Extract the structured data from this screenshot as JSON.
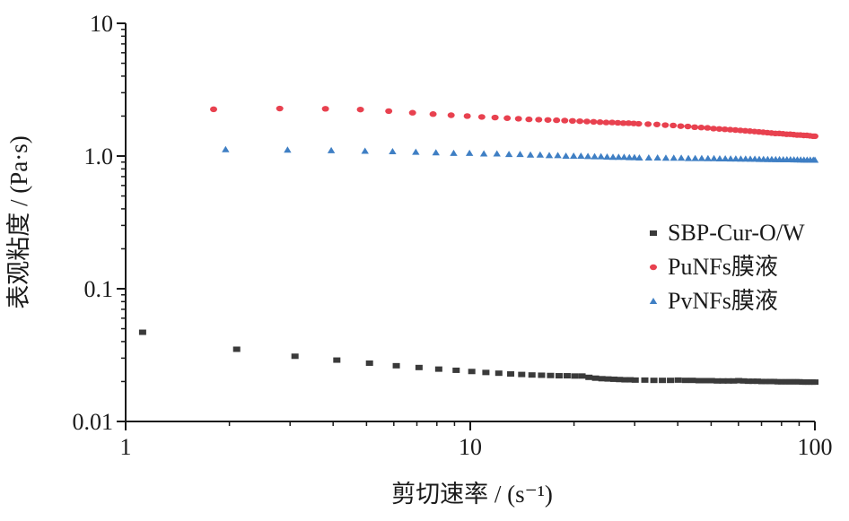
{
  "chart_data": {
    "type": "scatter",
    "xlabel": "剪切速率 / (s⁻¹)",
    "ylabel": "表观粘度 / (Pa·s)",
    "xscale": "log",
    "yscale": "log",
    "xlim": [
      1,
      100
    ],
    "ylim": [
      0.01,
      10
    ],
    "x_ticks": [
      1,
      10,
      100
    ],
    "x_tick_labels": [
      "1",
      "10",
      "100"
    ],
    "y_ticks": [
      0.01,
      0.1,
      1,
      10
    ],
    "y_tick_labels": [
      "0.01",
      "0.1",
      "1.0",
      "10"
    ],
    "grid": false,
    "legend_position": "right",
    "series": [
      {
        "name": "SBP-Cur-O/W",
        "marker": "square",
        "color": "#3a3a3a",
        "x": [
          1.12,
          2.1,
          3.1,
          4.1,
          5.1,
          6.1,
          7.1,
          8.1,
          9.1,
          10.1,
          11.1,
          12.1,
          13.1,
          14.1,
          15.1,
          16.1,
          17.1,
          18.1,
          19.1,
          20.1,
          21.1,
          22.1,
          23.1,
          24.1,
          25.1,
          26.1,
          27.1,
          28.1,
          29.1,
          30.1,
          32.1,
          34.1,
          36.1,
          38.1,
          40.1,
          42.1,
          44.1,
          46.1,
          48.1,
          50.1,
          52.1,
          54.1,
          56.1,
          58.1,
          60.1,
          62.1,
          64.1,
          66.1,
          68.1,
          70.1,
          72.1,
          74.1,
          76.1,
          78.1,
          80.1,
          82.1,
          84.1,
          86.1,
          88.1,
          90.1,
          92.1,
          94.1,
          96.1,
          98.1,
          100
        ],
        "y": [
          0.047,
          0.035,
          0.031,
          0.029,
          0.0275,
          0.0263,
          0.0255,
          0.0248,
          0.0243,
          0.0238,
          0.0234,
          0.0231,
          0.0228,
          0.0226,
          0.0224,
          0.0223,
          0.0222,
          0.0221,
          0.0221,
          0.022,
          0.022,
          0.0215,
          0.0212,
          0.021,
          0.0209,
          0.0208,
          0.0207,
          0.0206,
          0.0206,
          0.0205,
          0.0205,
          0.0204,
          0.0204,
          0.0204,
          0.0205,
          0.0204,
          0.0204,
          0.0203,
          0.0203,
          0.0203,
          0.0202,
          0.0202,
          0.0202,
          0.0202,
          0.0203,
          0.0202,
          0.0201,
          0.0201,
          0.0201,
          0.02,
          0.02,
          0.02,
          0.02,
          0.0199,
          0.0199,
          0.0199,
          0.0199,
          0.0199,
          0.0199,
          0.0199,
          0.0198,
          0.0198,
          0.0198,
          0.0198,
          0.0198
        ]
      },
      {
        "name": "PuNFs膜液",
        "marker": "circle",
        "color": "#e8414f",
        "x": [
          1.8,
          2.8,
          3.8,
          4.8,
          5.8,
          6.8,
          7.8,
          8.8,
          9.8,
          10.8,
          11.8,
          12.8,
          13.8,
          14.8,
          15.8,
          16.8,
          17.8,
          18.8,
          19.8,
          20.8,
          21.8,
          22.8,
          23.8,
          24.8,
          25.8,
          26.8,
          27.8,
          28.8,
          29.8,
          30.8,
          32.8,
          34.8,
          36.8,
          38.8,
          40.8,
          42.8,
          44.8,
          46.8,
          48.8,
          50.8,
          52.8,
          54.8,
          56.8,
          58.8,
          60.8,
          62.8,
          64.8,
          66.8,
          68.8,
          70.8,
          72.8,
          74.8,
          76.8,
          78.8,
          80.8,
          82.8,
          84.8,
          86.8,
          88.8,
          90.8,
          92.8,
          94.8,
          96.8,
          98.8,
          100
        ],
        "y": [
          2.25,
          2.28,
          2.27,
          2.24,
          2.18,
          2.12,
          2.07,
          2.03,
          2.0,
          1.97,
          1.95,
          1.93,
          1.91,
          1.89,
          1.88,
          1.87,
          1.86,
          1.85,
          1.84,
          1.83,
          1.82,
          1.81,
          1.8,
          1.79,
          1.79,
          1.78,
          1.77,
          1.77,
          1.76,
          1.75,
          1.74,
          1.73,
          1.71,
          1.7,
          1.68,
          1.67,
          1.65,
          1.64,
          1.63,
          1.61,
          1.6,
          1.59,
          1.58,
          1.57,
          1.56,
          1.55,
          1.54,
          1.53,
          1.52,
          1.51,
          1.5,
          1.49,
          1.48,
          1.48,
          1.47,
          1.46,
          1.46,
          1.45,
          1.44,
          1.44,
          1.43,
          1.43,
          1.42,
          1.41,
          1.41
        ]
      },
      {
        "name": "PvNFs膜液",
        "marker": "triangle",
        "color": "#3f7fc4",
        "x": [
          1.95,
          2.95,
          3.95,
          4.95,
          5.95,
          6.95,
          7.95,
          8.95,
          9.95,
          10.95,
          11.95,
          12.95,
          13.95,
          14.95,
          15.95,
          16.95,
          17.95,
          18.95,
          19.95,
          20.95,
          21.95,
          22.95,
          23.95,
          24.95,
          25.95,
          26.95,
          27.95,
          28.95,
          29.95,
          30.95,
          32.95,
          34.95,
          36.95,
          38.95,
          40.95,
          42.95,
          44.95,
          46.95,
          48.95,
          50.95,
          52.95,
          54.95,
          56.95,
          58.95,
          60.95,
          62.95,
          64.95,
          66.95,
          68.95,
          70.95,
          72.95,
          74.95,
          76.95,
          78.95,
          80.95,
          82.95,
          84.95,
          86.95,
          88.95,
          90.95,
          92.95,
          94.95,
          96.95,
          98.95,
          100
        ],
        "y": [
          1.12,
          1.11,
          1.1,
          1.09,
          1.08,
          1.07,
          1.06,
          1.05,
          1.05,
          1.04,
          1.04,
          1.03,
          1.03,
          1.02,
          1.02,
          1.01,
          1.01,
          1.0,
          1.0,
          1.0,
          0.995,
          0.99,
          0.99,
          0.985,
          0.98,
          0.98,
          0.98,
          0.975,
          0.975,
          0.97,
          0.97,
          0.97,
          0.965,
          0.965,
          0.965,
          0.96,
          0.96,
          0.96,
          0.958,
          0.958,
          0.955,
          0.955,
          0.953,
          0.953,
          0.95,
          0.95,
          0.948,
          0.948,
          0.946,
          0.945,
          0.944,
          0.943,
          0.942,
          0.941,
          0.94,
          0.94,
          0.939,
          0.938,
          0.937,
          0.936,
          0.935,
          0.935,
          0.934,
          0.933,
          0.932
        ]
      }
    ]
  }
}
